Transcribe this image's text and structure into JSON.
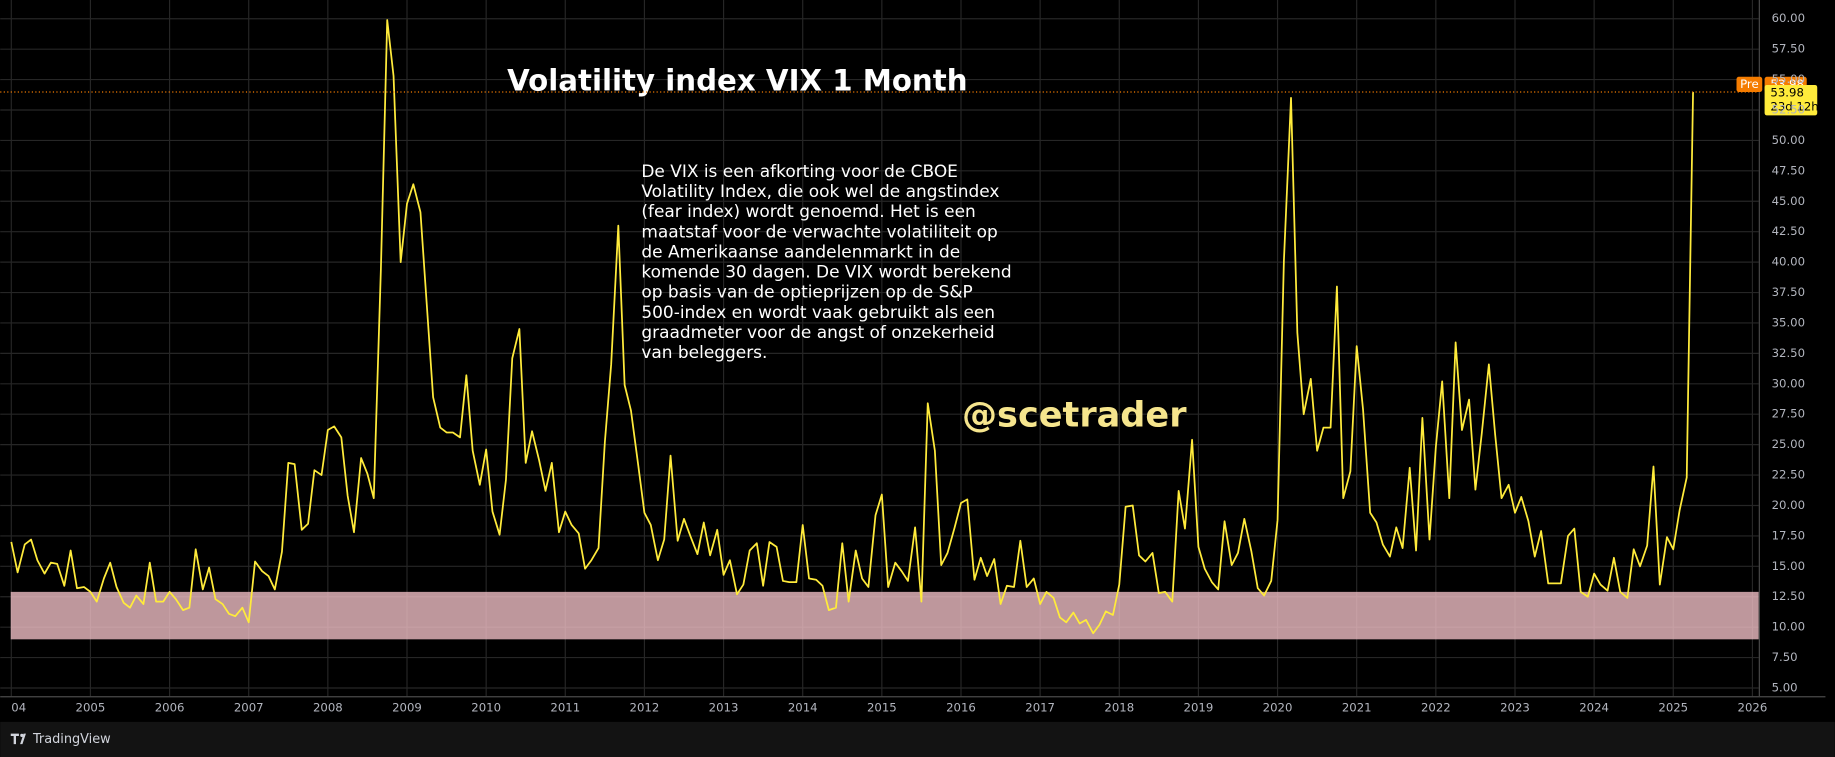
{
  "chart_data": {
    "type": "line",
    "title": "Volatility index VIX 1 Month",
    "color": "#ffeb3b",
    "grid": true,
    "xlim": [
      2003.86,
      2026.08
    ],
    "ylim": [
      4.33,
      61.54
    ],
    "xticks": [
      {
        "value": 2004,
        "label": "04"
      },
      2005,
      2006,
      2007,
      2008,
      2009,
      2010,
      2011,
      2012,
      2013,
      2014,
      2015,
      2016,
      2017,
      2018,
      2019,
      2020,
      2021,
      2022,
      2023,
      2024,
      2025,
      2026
    ],
    "yticks": [
      {
        "value": 5,
        "label": "5.00"
      },
      {
        "value": 7.5,
        "label": "7.50"
      },
      {
        "value": 10,
        "label": "10.00"
      },
      {
        "value": 12.5,
        "label": "12.50"
      },
      {
        "value": 15,
        "label": "15.00"
      },
      {
        "value": 17.5,
        "label": "17.50"
      },
      {
        "value": 20,
        "label": "20.00"
      },
      {
        "value": 22.5,
        "label": "22.50"
      },
      {
        "value": 25,
        "label": "25.00"
      },
      {
        "value": 27.5,
        "label": "27.50"
      },
      {
        "value": 30,
        "label": "30.00"
      },
      {
        "value": 32.5,
        "label": "32.50"
      },
      {
        "value": 35,
        "label": "35.00"
      },
      {
        "value": 37.5,
        "label": "37.50"
      },
      {
        "value": 40,
        "label": "40.00"
      },
      {
        "value": 42.5,
        "label": "42.50"
      },
      {
        "value": 45,
        "label": "45.00"
      },
      {
        "value": 47.5,
        "label": "47.50"
      },
      {
        "value": 50,
        "label": "50.00"
      },
      {
        "value": 52.5,
        "label": "52.50"
      },
      {
        "value": 55,
        "label": "55.00"
      },
      {
        "value": 57.5,
        "label": "57.50"
      },
      {
        "value": 60,
        "label": "60.00"
      }
    ],
    "x": [
      2004,
      2004.08,
      2004.17,
      2004.25,
      2004.33,
      2004.42,
      2004.5,
      2004.58,
      2004.67,
      2004.75,
      2004.83,
      2004.92,
      2005,
      2005.08,
      2005.17,
      2005.25,
      2005.33,
      2005.42,
      2005.5,
      2005.58,
      2005.67,
      2005.75,
      2005.83,
      2005.92,
      2006,
      2006.08,
      2006.17,
      2006.25,
      2006.33,
      2006.42,
      2006.5,
      2006.58,
      2006.67,
      2006.75,
      2006.83,
      2006.92,
      2007,
      2007.08,
      2007.17,
      2007.25,
      2007.33,
      2007.42,
      2007.5,
      2007.58,
      2007.67,
      2007.75,
      2007.83,
      2007.92,
      2008,
      2008.08,
      2008.17,
      2008.25,
      2008.33,
      2008.42,
      2008.5,
      2008.58,
      2008.67,
      2008.75,
      2008.83,
      2008.92,
      2009,
      2009.08,
      2009.17,
      2009.25,
      2009.33,
      2009.42,
      2009.5,
      2009.58,
      2009.67,
      2009.75,
      2009.83,
      2009.92,
      2010,
      2010.08,
      2010.17,
      2010.25,
      2010.33,
      2010.42,
      2010.5,
      2010.58,
      2010.67,
      2010.75,
      2010.83,
      2010.92,
      2011,
      2011.08,
      2011.17,
      2011.25,
      2011.33,
      2011.42,
      2011.5,
      2011.58,
      2011.67,
      2011.75,
      2011.83,
      2011.92,
      2012,
      2012.08,
      2012.17,
      2012.25,
      2012.33,
      2012.42,
      2012.5,
      2012.58,
      2012.67,
      2012.75,
      2012.83,
      2012.92,
      2013,
      2013.08,
      2013.17,
      2013.25,
      2013.33,
      2013.42,
      2013.5,
      2013.58,
      2013.67,
      2013.75,
      2013.83,
      2013.92,
      2014,
      2014.08,
      2014.17,
      2014.25,
      2014.33,
      2014.42,
      2014.5,
      2014.58,
      2014.67,
      2014.75,
      2014.83,
      2014.92,
      2015,
      2015.08,
      2015.17,
      2015.25,
      2015.33,
      2015.42,
      2015.5,
      2015.58,
      2015.67,
      2015.75,
      2015.83,
      2015.92,
      2016,
      2016.08,
      2016.17,
      2016.25,
      2016.33,
      2016.42,
      2016.5,
      2016.58,
      2016.67,
      2016.75,
      2016.83,
      2016.92,
      2017,
      2017.08,
      2017.17,
      2017.25,
      2017.33,
      2017.42,
      2017.5,
      2017.58,
      2017.67,
      2017.75,
      2017.83,
      2017.92,
      2018,
      2018.08,
      2018.17,
      2018.25,
      2018.33,
      2018.42,
      2018.5,
      2018.58,
      2018.67,
      2018.75,
      2018.83,
      2018.92,
      2019,
      2019.08,
      2019.17,
      2019.25,
      2019.33,
      2019.42,
      2019.5,
      2019.58,
      2019.67,
      2019.75,
      2019.83,
      2019.92,
      2020,
      2020.08,
      2020.17,
      2020.25,
      2020.33,
      2020.42,
      2020.5,
      2020.58,
      2020.67,
      2020.75,
      2020.83,
      2020.92,
      2021,
      2021.08,
      2021.17,
      2021.25,
      2021.33,
      2021.42,
      2021.5,
      2021.58,
      2021.67,
      2021.75,
      2021.83,
      2021.92,
      2022,
      2022.08,
      2022.17,
      2022.25,
      2022.33,
      2022.42,
      2022.5,
      2022.58,
      2022.67,
      2022.75,
      2022.83,
      2022.92,
      2023,
      2023.08,
      2023.17,
      2023.25,
      2023.33,
      2023.42,
      2023.5,
      2023.58,
      2023.67,
      2023.75,
      2023.83,
      2023.92,
      2024,
      2024.08,
      2024.17,
      2024.25,
      2024.33,
      2024.42,
      2024.5,
      2024.58,
      2024.67,
      2024.75,
      2024.83,
      2024.92,
      2025,
      2025.08,
      2025.17,
      2025.25
    ],
    "values": [
      17,
      14.5,
      16.8,
      17.2,
      15.5,
      14.4,
      15.3,
      15.2,
      13.4,
      16.3,
      13.2,
      13.3,
      12.9,
      12.1,
      14,
      15.3,
      13.3,
      12,
      11.6,
      12.6,
      11.9,
      15.3,
      12.1,
      12.1,
      12.9,
      12.3,
      11.4,
      11.6,
      16.4,
      13.1,
      14.9,
      12.3,
      11.9,
      11.1,
      10.9,
      11.6,
      10.4,
      15.4,
      14.6,
      14.2,
      13.1,
      16.2,
      23.5,
      23.4,
      18,
      18.5,
      22.9,
      22.5,
      26.2,
      26.5,
      25.6,
      20.8,
      17.8,
      23.9,
      22.6,
      20.6,
      39.4,
      59.9,
      55.3,
      40,
      44.8,
      46.4,
      44.1,
      36.5,
      28.9,
      26.4,
      26,
      26,
      25.6,
      30.7,
      24.5,
      21.7,
      24.6,
      19.5,
      17.6,
      22.1,
      32.1,
      34.5,
      23.5,
      26.1,
      23.7,
      21.2,
      23.5,
      17.8,
      19.5,
      18.4,
      17.7,
      14.8,
      15.5,
      16.5,
      25.2,
      31.6,
      43,
      29.9,
      27.8,
      23.4,
      19.4,
      18.4,
      15.5,
      17.2,
      24.1,
      17.1,
      18.9,
      17.5,
      16,
      18.6,
      15.9,
      18,
      14.3,
      15.5,
      12.7,
      13.5,
      16.3,
      16.9,
      13.4,
      17,
      16.6,
      13.8,
      13.7,
      13.7,
      18.4,
      14,
      13.9,
      13.4,
      11.4,
      11.6,
      16.9,
      12.1,
      16.3,
      14,
      13.3,
      19.2,
      20.9,
      13.3,
      15.3,
      14.6,
      13.8,
      18.2,
      12.1,
      28.4,
      24.5,
      15.1,
      16.1,
      18.2,
      20.2,
      20.5,
      13.9,
      15.7,
      14.2,
      15.6,
      11.9,
      13.4,
      13.3,
      17.1,
      13.3,
      14,
      11.9,
      12.9,
      12.4,
      10.8,
      10.4,
      11.2,
      10.3,
      10.6,
      9.5,
      10.2,
      11.3,
      11,
      13.5,
      19.9,
      20,
      15.9,
      15.4,
      16.1,
      12.8,
      12.9,
      12.1,
      21.2,
      18.1,
      25.4,
      16.6,
      14.8,
      13.7,
      13.1,
      18.7,
      15.1,
      16.1,
      18.9,
      16.2,
      13.2,
      12.6,
      13.8,
      18.8,
      40.1,
      53.5,
      34.2,
      27.5,
      30.4,
      24.5,
      26.4,
      26.4,
      38,
      20.6,
      22.8,
      33.1,
      27.9,
      19.4,
      18.6,
      16.8,
      15.8,
      18.2,
      16.5,
      23.1,
      16.3,
      27.2,
      17.2,
      24.8,
      30.2,
      20.6,
      33.4,
      26.2,
      28.7,
      21.3,
      25.9,
      31.6,
      25.8,
      20.6,
      21.7,
      19.4,
      20.7,
      18.7,
      15.8,
      17.9,
      13.6,
      13.6,
      13.6,
      17.5,
      18.1,
      12.9,
      12.5,
      14.4,
      13.5,
      13,
      15.7,
      12.9,
      12.4,
      16.4,
      15,
      16.7,
      23.2,
      13.5,
      17.4,
      16.4,
      19.6,
      22.3,
      53.98
    ],
    "band": {
      "from": 9,
      "to": 12.9,
      "color": "#f4c2c8"
    },
    "description": [
      "De VIX is een afkorting voor de CBOE",
      "Volatility Index, die ook wel de angstindex",
      "(fear index) wordt genoemd. Het is een",
      "maatstaf voor de verwachte volatiliteit op",
      "de Amerikaanse aandelenmarkt in de",
      "komende 30 dagen. De VIX wordt berekend",
      "op basis van de optieprijzen op de S&P",
      "500-index en wordt vaak gebruikt als een",
      "graadmeter voor de angst of onzekerheid",
      "van beleggers."
    ],
    "watermark": "@scetrader",
    "price_tag": {
      "prefix": "Pre",
      "countdown": "23d 12h"
    }
  },
  "footer": {
    "brand": "TradingView"
  }
}
